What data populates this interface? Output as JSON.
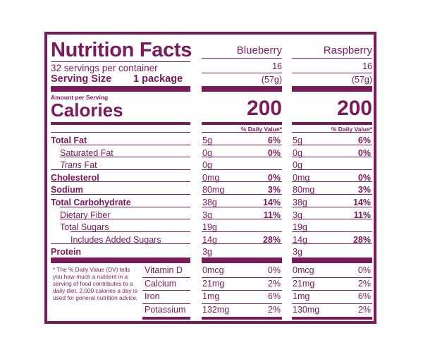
{
  "label": {
    "title": "Nutrition Facts",
    "servings_per_container": "32 servings per container",
    "serving_size_label": "Serving Size",
    "serving_size_value": "1 package",
    "amount_per_serving": "Amount per Serving",
    "calories_label": "Calories",
    "dv_header": "% Daily Value*",
    "footnote": "* The % Daily Value (DV) tells you how much a nutrient in a serving of food contributes to a daily diet. 2,000 calories a day is used for general nutrition advice."
  },
  "nutrients": [
    {
      "key": "total_fat",
      "label": "Total Fat",
      "bold": true,
      "indent": 0
    },
    {
      "key": "saturated_fat",
      "label": "Saturated Fat",
      "bold": false,
      "indent": 1
    },
    {
      "key": "trans_fat",
      "label_italic": "Trans",
      "label": " Fat",
      "bold": false,
      "indent": 1
    },
    {
      "key": "cholesterol",
      "label": "Cholesterol",
      "bold": true,
      "indent": 0
    },
    {
      "key": "sodium",
      "label": "Sodium",
      "bold": true,
      "indent": 0
    },
    {
      "key": "total_carbohydrate",
      "label": "Total Carbohydrate",
      "bold": true,
      "indent": 0
    },
    {
      "key": "dietary_fiber",
      "label": "Dietary Fiber",
      "bold": false,
      "indent": 1
    },
    {
      "key": "total_sugars",
      "label": "Total Sugars",
      "bold": false,
      "indent": 1
    },
    {
      "key": "added_sugars",
      "label": "Includes Added Sugars",
      "bold": false,
      "indent": 2
    },
    {
      "key": "protein",
      "label": "Protein",
      "bold": true,
      "indent": 0
    }
  ],
  "vitamins": [
    "Vitamin D",
    "Calcium",
    "Iron",
    "Potassium"
  ],
  "products": [
    {
      "name": "Blueberry",
      "servings": "16",
      "serving_grams": "(57g)",
      "calories": "200",
      "nutrients": [
        {
          "amount": "5g",
          "dv": "6%"
        },
        {
          "amount": "0g",
          "dv": "0%"
        },
        {
          "amount": "0g",
          "dv": ""
        },
        {
          "amount": "0mg",
          "dv": "0%"
        },
        {
          "amount": "80mg",
          "dv": "3%"
        },
        {
          "amount": "38g",
          "dv": "14%"
        },
        {
          "amount": "3g",
          "dv": "11%"
        },
        {
          "amount": "19g",
          "dv": ""
        },
        {
          "amount": "14g",
          "dv": "28%"
        },
        {
          "amount": "3g",
          "dv": ""
        }
      ],
      "vitamins": [
        {
          "amount": "0mcg",
          "dv": "0%"
        },
        {
          "amount": "21mg",
          "dv": "2%"
        },
        {
          "amount": "1mg",
          "dv": "6%"
        },
        {
          "amount": "132mg",
          "dv": "2%"
        }
      ]
    },
    {
      "name": "Raspberry",
      "servings": "16",
      "serving_grams": "(57g)",
      "calories": "200",
      "nutrients": [
        {
          "amount": "5g",
          "dv": "6%"
        },
        {
          "amount": "0g",
          "dv": "0%"
        },
        {
          "amount": "0g",
          "dv": ""
        },
        {
          "amount": "0mg",
          "dv": "0%"
        },
        {
          "amount": "80mg",
          "dv": "3%"
        },
        {
          "amount": "38g",
          "dv": "14%"
        },
        {
          "amount": "3g",
          "dv": "11%"
        },
        {
          "amount": "19g",
          "dv": ""
        },
        {
          "amount": "14g",
          "dv": "28%"
        },
        {
          "amount": "3g",
          "dv": ""
        }
      ],
      "vitamins": [
        {
          "amount": "0mcg",
          "dv": "0%"
        },
        {
          "amount": "21mg",
          "dv": "2%"
        },
        {
          "amount": "1mg",
          "dv": "6%"
        },
        {
          "amount": "130mg",
          "dv": "2%"
        }
      ]
    }
  ],
  "colors": {
    "ink": "#7a1a5a",
    "background": "#ffffff"
  }
}
